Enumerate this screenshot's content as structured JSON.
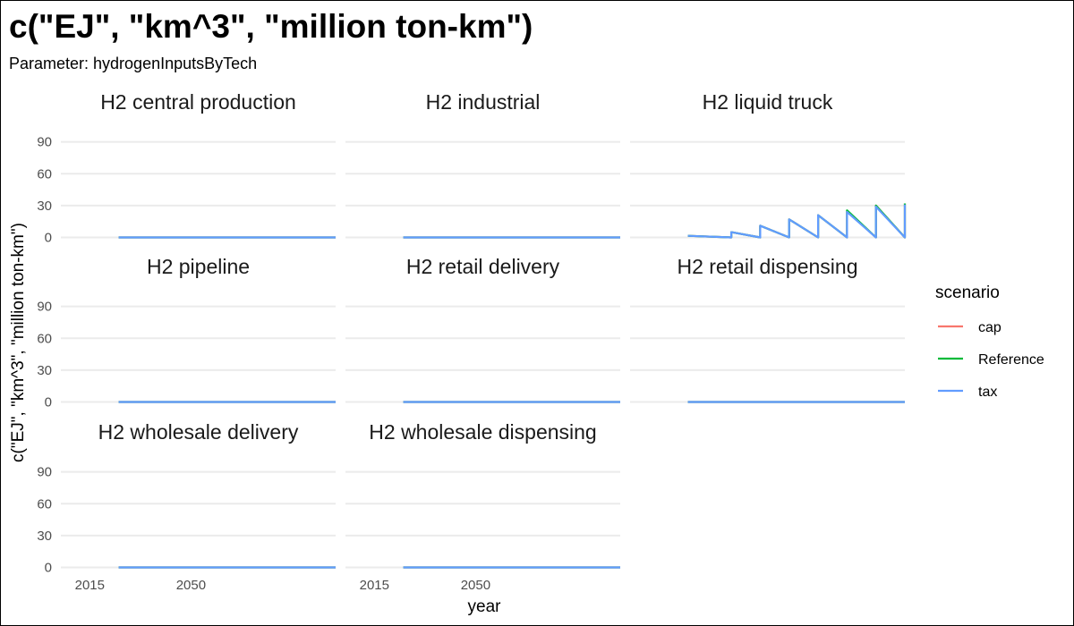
{
  "chart_data": {
    "type": "line",
    "title": "c(\"EJ\", \"km^3\", \"million ton-km\")",
    "subtitle": "Parameter: hydrogenInputsByTech",
    "xlabel": "year",
    "ylabel": "c(\"EJ\", \"km^3\", \"million ton-km\")",
    "xlim": [
      2005,
      2100
    ],
    "ylim": [
      -8,
      99
    ],
    "x_ticks": [
      2015,
      2050
    ],
    "x_tick_labels": [
      "2015",
      "2050"
    ],
    "y_ticks": [
      0,
      30,
      60,
      90
    ],
    "y_tick_labels": [
      "0",
      "30",
      "60",
      "90"
    ],
    "grid": true,
    "legend": {
      "title": "scenario",
      "position": "right",
      "entries": [
        {
          "name": "cap",
          "color": "#F8766D"
        },
        {
          "name": "Reference",
          "color": "#00BA38"
        },
        {
          "name": "tax",
          "color": "#619CFF"
        }
      ]
    },
    "facets": [
      {
        "name": "H2 central production",
        "series": [
          {
            "name": "cap",
            "x": [
              2025,
              2060,
              2100
            ],
            "y": [
              0,
              0,
              0
            ]
          },
          {
            "name": "Reference",
            "x": [
              2025,
              2060,
              2100
            ],
            "y": [
              0,
              0,
              0
            ]
          },
          {
            "name": "tax",
            "x": [
              2025,
              2060,
              2100
            ],
            "y": [
              0,
              0,
              0
            ]
          }
        ]
      },
      {
        "name": "H2 industrial",
        "series": [
          {
            "name": "cap",
            "x": [
              2025,
              2060,
              2100
            ],
            "y": [
              0,
              0,
              0
            ]
          },
          {
            "name": "Reference",
            "x": [
              2025,
              2060,
              2100
            ],
            "y": [
              0,
              0,
              0
            ]
          },
          {
            "name": "tax",
            "x": [
              2025,
              2060,
              2100
            ],
            "y": [
              0,
              0,
              0
            ]
          }
        ]
      },
      {
        "name": "H2 liquid truck",
        "series": [
          {
            "name": "cap",
            "x": [
              2025,
              2040,
              2040,
              2050,
              2050,
              2060,
              2060,
              2070,
              2070,
              2080,
              2080,
              2090,
              2090,
              2100,
              2100
            ],
            "y": [
              1.5,
              0,
              5,
              0,
              11,
              0,
              17,
              0,
              21,
              0,
              25,
              0,
              30,
              0,
              32
            ]
          },
          {
            "name": "Reference",
            "x": [
              2025,
              2040,
              2040,
              2050,
              2050,
              2060,
              2060,
              2070,
              2070,
              2080,
              2080,
              2090,
              2090,
              2100,
              2100
            ],
            "y": [
              1.5,
              0,
              5,
              0,
              11,
              0,
              17,
              0,
              21,
              0,
              25.5,
              0,
              30,
              0,
              32
            ]
          },
          {
            "name": "tax",
            "x": [
              2025,
              2040,
              2040,
              2050,
              2050,
              2060,
              2060,
              2070,
              2070,
              2080,
              2080,
              2090,
              2090,
              2100,
              2100
            ],
            "y": [
              1.5,
              0,
              5,
              0,
              11,
              0,
              17,
              0,
              21,
              0,
              24,
              0,
              29,
              0,
              31
            ]
          }
        ]
      },
      {
        "name": "H2 pipeline",
        "series": [
          {
            "name": "cap",
            "x": [
              2025,
              2060,
              2100
            ],
            "y": [
              0,
              0,
              0
            ]
          },
          {
            "name": "Reference",
            "x": [
              2025,
              2060,
              2100
            ],
            "y": [
              0,
              0,
              0
            ]
          },
          {
            "name": "tax",
            "x": [
              2025,
              2060,
              2100
            ],
            "y": [
              0,
              0,
              0
            ]
          }
        ]
      },
      {
        "name": "H2 retail delivery",
        "series": [
          {
            "name": "cap",
            "x": [
              2025,
              2060,
              2100
            ],
            "y": [
              0,
              0,
              0
            ]
          },
          {
            "name": "Reference",
            "x": [
              2025,
              2060,
              2100
            ],
            "y": [
              0,
              0,
              0
            ]
          },
          {
            "name": "tax",
            "x": [
              2025,
              2060,
              2100
            ],
            "y": [
              0,
              0,
              0
            ]
          }
        ]
      },
      {
        "name": "H2 retail dispensing",
        "series": [
          {
            "name": "cap",
            "x": [
              2025,
              2060,
              2100
            ],
            "y": [
              0,
              0,
              0
            ]
          },
          {
            "name": "Reference",
            "x": [
              2025,
              2060,
              2100
            ],
            "y": [
              0,
              0,
              0
            ]
          },
          {
            "name": "tax",
            "x": [
              2025,
              2060,
              2100
            ],
            "y": [
              0,
              0,
              0
            ]
          }
        ]
      },
      {
        "name": "H2 wholesale delivery",
        "series": [
          {
            "name": "cap",
            "x": [
              2025,
              2060,
              2100
            ],
            "y": [
              0,
              0,
              0
            ]
          },
          {
            "name": "Reference",
            "x": [
              2025,
              2060,
              2100
            ],
            "y": [
              0,
              0,
              0
            ]
          },
          {
            "name": "tax",
            "x": [
              2025,
              2060,
              2100
            ],
            "y": [
              0,
              0,
              0
            ]
          }
        ]
      },
      {
        "name": "H2 wholesale dispensing",
        "series": [
          {
            "name": "cap",
            "x": [
              2025,
              2060,
              2100
            ],
            "y": [
              0,
              0,
              0
            ]
          },
          {
            "name": "Reference",
            "x": [
              2025,
              2060,
              2100
            ],
            "y": [
              0,
              0,
              0
            ]
          },
          {
            "name": "tax",
            "x": [
              2025,
              2060,
              2100
            ],
            "y": [
              0,
              0,
              0
            ]
          }
        ]
      }
    ]
  }
}
